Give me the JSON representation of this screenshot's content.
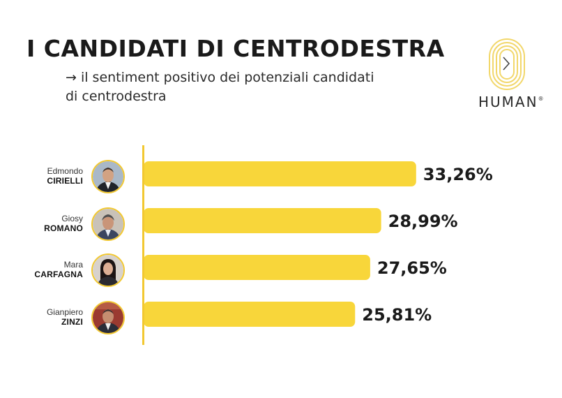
{
  "header": {
    "title": "I CANDIDATI DI CENTRODESTRA",
    "subtitle": "→ il sentiment positivo dei potenziali candidati di centrodestra"
  },
  "logo": {
    "text": "HUMAN",
    "mark": "®"
  },
  "colors": {
    "bar": "#f8d63a",
    "axis": "#f2c830",
    "text": "#1a1a1a"
  },
  "candidates": [
    {
      "first": "Edmondo",
      "last": "CIRIELLI"
    },
    {
      "first": "Giosy",
      "last": "ROMANO"
    },
    {
      "first": "Mara",
      "last": "CARFAGNA"
    },
    {
      "first": "Gianpiero",
      "last": "ZINZI"
    }
  ],
  "chart_data": {
    "type": "bar",
    "orientation": "horizontal",
    "categories": [
      "Edmondo CIRIELLI",
      "Giosy ROMANO",
      "Mara CARFAGNA",
      "Gianpiero ZINZI"
    ],
    "values": [
      33.26,
      28.99,
      27.65,
      25.81
    ],
    "value_labels": [
      "33,26%",
      "28,99%",
      "27,65%",
      "25,81%"
    ],
    "unit": "%",
    "xlim": [
      0,
      40
    ],
    "grid": false,
    "legend": "none"
  }
}
